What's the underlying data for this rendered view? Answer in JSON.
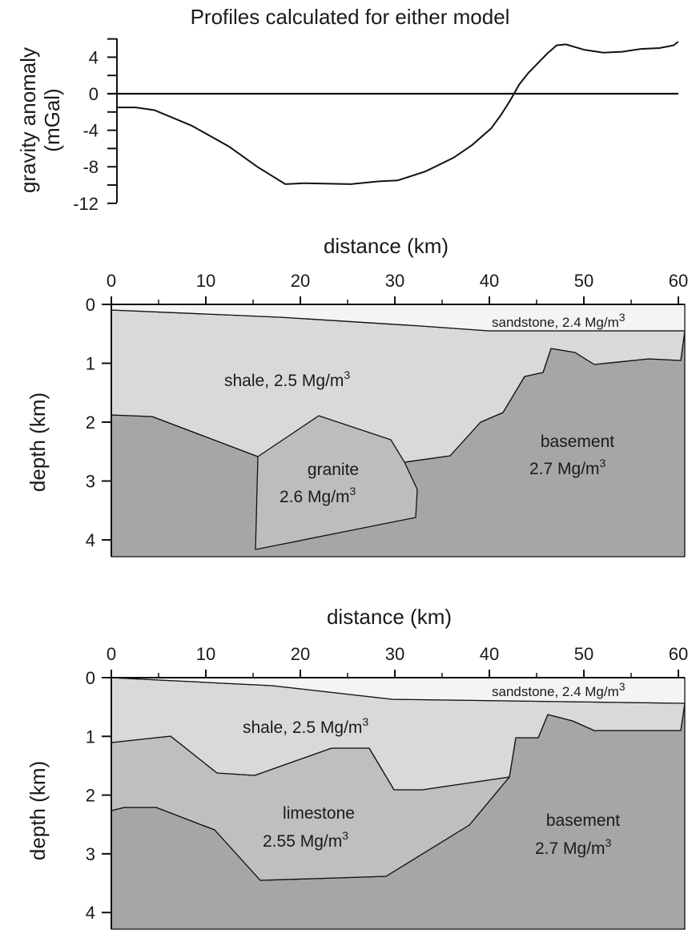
{
  "title": "Profiles calculated for either model",
  "gravity_panel": {
    "ylabel_line1": "gravity anomaly",
    "ylabel_line2": "(mGal)",
    "yticks": [
      "4",
      "0",
      "-4",
      "-8",
      "-12"
    ]
  },
  "model1": {
    "xlabel": "distance (km)",
    "ylabel": "depth (km)",
    "xticks": [
      "0",
      "10",
      "20",
      "30",
      "40",
      "50",
      "60"
    ],
    "yticks": [
      "0",
      "1",
      "2",
      "3",
      "4"
    ],
    "labels": {
      "sandstone": "sandstone, 2.4 Mg/m",
      "sandstone_sup": "3",
      "shale": "shale, 2.5 Mg/m",
      "shale_sup": "3",
      "granite_1": "granite",
      "granite_2": "2.6 Mg/m",
      "granite_sup": "3",
      "basement_1": "basement",
      "basement_2": "2.7 Mg/m",
      "basement_sup": "3"
    }
  },
  "model2": {
    "xlabel": "distance (km)",
    "ylabel": "depth (km)",
    "xticks": [
      "0",
      "10",
      "20",
      "30",
      "40",
      "50",
      "60"
    ],
    "yticks": [
      "0",
      "1",
      "2",
      "3",
      "4"
    ],
    "labels": {
      "sandstone": "sandstone, 2.4 Mg/m",
      "sandstone_sup": "3",
      "shale": "shale, 2.5 Mg/m",
      "shale_sup": "3",
      "limestone_1": "limestone",
      "limestone_2": "2.55 Mg/m",
      "limestone_sup": "3",
      "basement_1": "basement",
      "basement_2": "2.7 Mg/m",
      "basement_sup": "3"
    }
  },
  "colors": {
    "sandstone": "#f4f4f4",
    "shale": "#d9d9d9",
    "limestone": "#bfbfbf",
    "granite": "#bdbdbd",
    "basement": "#a6a6a6",
    "line": "#111111"
  },
  "chart_data": {
    "type": "line",
    "title": "Profiles calculated for either model",
    "xlabel": "distance (km)",
    "ylabel": "gravity anomaly (mGal)",
    "ylim": [
      -12,
      6
    ],
    "xlim": [
      0,
      60
    ],
    "x": [
      0,
      2,
      4,
      8,
      12,
      15,
      18,
      20,
      25,
      28,
      30,
      33,
      36,
      38,
      40,
      41,
      42,
      43,
      44,
      46,
      47,
      48,
      50,
      52,
      54,
      56,
      58,
      59.5,
      60
    ],
    "series": [
      {
        "values": [
          -1.5,
          -1.5,
          -1.8,
          -3.5,
          -5.8,
          -8.0,
          -9.9,
          -9.8,
          -9.9,
          -9.6,
          -9.5,
          -8.5,
          -7.0,
          -5.6,
          -3.8,
          -2.4,
          -0.8,
          1.0,
          2.3,
          4.4,
          5.3,
          5.4,
          4.8,
          4.5,
          4.6,
          4.9,
          5.0,
          5.3,
          5.7
        ]
      }
    ],
    "grid": false
  }
}
